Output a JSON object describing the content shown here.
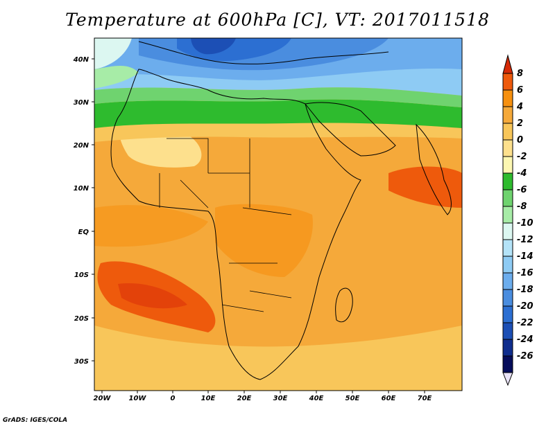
{
  "title": "Temperature at 600hPa [C], VT: 2017011518",
  "credit": "GrADS: IGES/COLA",
  "map": {
    "lat_ticks": [
      "40N",
      "30N",
      "20N",
      "10N",
      "EQ",
      "10S",
      "20S",
      "30S"
    ],
    "lon_ticks": [
      "20W",
      "10W",
      "0",
      "10E",
      "20E",
      "30E",
      "40E",
      "50E",
      "60E",
      "70E"
    ]
  },
  "colorbar": {
    "labels": [
      "8",
      "6",
      "4",
      "2",
      "0",
      "-2",
      "-4",
      "-6",
      "-8",
      "-10",
      "-12",
      "-14",
      "-16",
      "-18",
      "-20",
      "-22",
      "-24",
      "-26"
    ],
    "colors": [
      "#d52a07",
      "#ee5a0c",
      "#f6900f",
      "#f5a93a",
      "#f8c65a",
      "#fde08d",
      "#fcf7b2",
      "#2ebb2e",
      "#6fd36f",
      "#a7eca7",
      "#dcf7f1",
      "#b4e3f8",
      "#8ecbf4",
      "#6caded",
      "#4a8ddf",
      "#2c6fd2",
      "#1c4fb5",
      "#0f2d8d",
      "#060d5b"
    ]
  },
  "regions": [
    {
      "name": "north-cold-zone",
      "color": "#5b95e0"
    },
    {
      "name": "mediterranean-core",
      "color": "#1d4fb5"
    },
    {
      "name": "green-band",
      "color": "#2ebb2e"
    },
    {
      "name": "sahara-pale",
      "color": "#fde08d"
    },
    {
      "name": "tropical-orange",
      "color": "#f5a93a"
    },
    {
      "name": "atlantic-hotspot",
      "color": "#e94a0d"
    }
  ]
}
